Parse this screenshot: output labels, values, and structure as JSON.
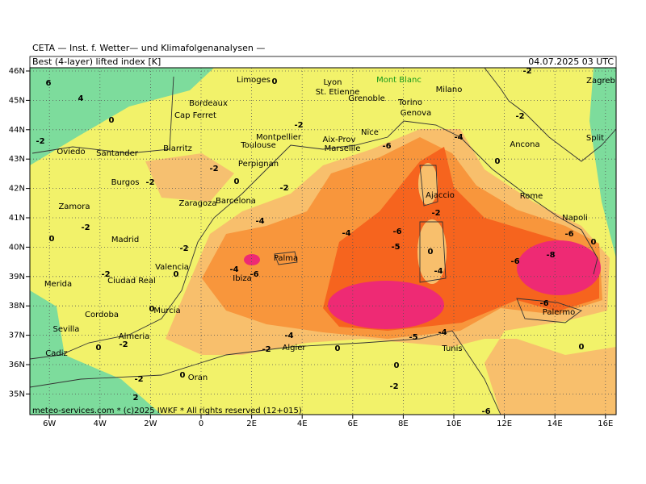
{
  "header": {
    "institute": "CETA — Inst. f. Wetter— und Klimafolgenanalysen —",
    "parameter": "Best (4-layer) lifted index [K]",
    "valid_time": "04.07.2025 03 UTC"
  },
  "map": {
    "lon_ticks": [
      {
        "value": -6,
        "label": "6W"
      },
      {
        "value": -4,
        "label": "4W"
      },
      {
        "value": -2,
        "label": "2W"
      },
      0,
      {
        "value": 2,
        "label": "2E"
      },
      {
        "value": 4,
        "label": "4E"
      },
      {
        "value": 6,
        "label": "6E"
      },
      {
        "value": 8,
        "label": "8E"
      },
      {
        "value": 10,
        "label": "10E"
      },
      {
        "value": 12,
        "label": "12E"
      },
      {
        "value": 14,
        "label": "14E"
      },
      {
        "value": 16,
        "label": "16E"
      }
    ],
    "lat_ticks": [
      {
        "value": 46,
        "label": "46N"
      },
      {
        "value": 45,
        "label": "45N"
      },
      {
        "value": 44,
        "label": "44N"
      },
      {
        "value": 43,
        "label": "43N"
      },
      {
        "value": 42,
        "label": "42N"
      },
      {
        "value": 41,
        "label": "41N"
      },
      {
        "value": 40,
        "label": "40N"
      },
      {
        "value": 39,
        "label": "39N"
      },
      {
        "value": 38,
        "label": "38N"
      },
      {
        "value": 37,
        "label": "37N"
      },
      {
        "value": 36,
        "label": "36N"
      },
      {
        "value": 35,
        "label": "35N"
      }
    ],
    "cities": [
      "Limoges",
      "Lyon",
      "St. Etienne",
      "Mont Blanc",
      "Grenoble",
      "Torino",
      "Genova",
      "Milano",
      "Bordeaux",
      "Cap Ferret",
      "Montpellier",
      "Nice",
      "Toulouse",
      "Aix-Prov",
      "Marseille",
      "Oviedo",
      "Santander",
      "Biarritz",
      "Perpignan",
      "Burgos",
      "Zaragoza",
      "Barcelona",
      "Ajaccio",
      "Rome",
      "Napoli",
      "Ancona",
      "Split",
      "Zagreb",
      "Zamora",
      "Madrid",
      "Palma",
      "Valencia",
      "Ibiza",
      "Merida",
      "Ciudad Real",
      "Murcia",
      "Cordoba",
      "Palermo",
      "Sevilla",
      "Almeria",
      "Algier",
      "Tunis",
      "Cadiz",
      "Oran"
    ],
    "contour_labels": [
      6,
      4,
      0,
      -2,
      0,
      -2,
      -2,
      -2,
      0,
      -2,
      -4,
      -4,
      -5,
      -6,
      -2,
      0,
      -4,
      -4,
      -6,
      -2,
      0,
      -2,
      0,
      -2,
      0,
      -6,
      -8,
      -6,
      0,
      -6,
      -4,
      -2,
      0,
      -2,
      -2,
      0,
      2,
      0,
      0,
      -2,
      -5,
      -4,
      -6,
      0,
      0,
      -2,
      -6,
      -4,
      -2
    ],
    "footer": "meteo-services.com * (c)2025 IWKF * All rights reserved (12+015)"
  }
}
